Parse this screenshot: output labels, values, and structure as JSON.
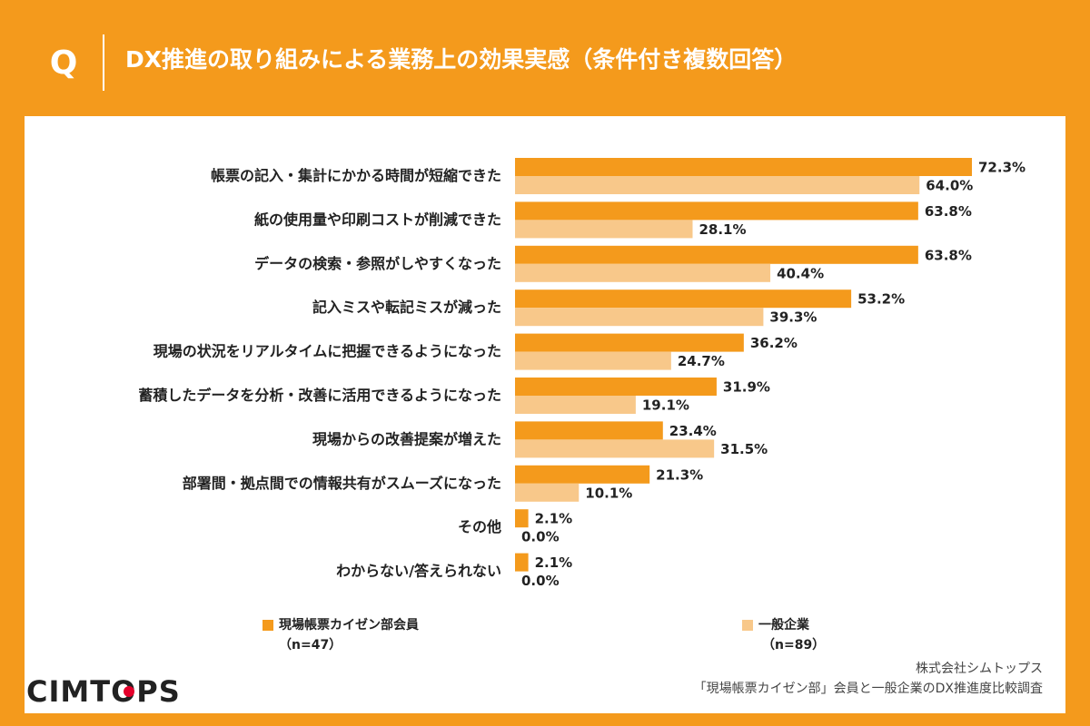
{
  "header": {
    "q_mark": "Q",
    "title": "DX推進の取り組みによる業務上の効果実感（条件付き複数回答）"
  },
  "colors": {
    "background": "#F49A1C",
    "series_primary": "#F49A1C",
    "series_secondary": "#F8C88A"
  },
  "legend": {
    "items": [
      {
        "name": "現場帳票カイゼン部会員",
        "n": "（n=47）"
      },
      {
        "name": "一般企業",
        "n": "（n=89）"
      }
    ]
  },
  "logo": {
    "text": "CIMTOPS"
  },
  "source": {
    "line1": "株式会社シムトップス",
    "line2": "「現場帳票カイゼン部」会員と一般企業のDX推進度比較調査"
  },
  "chart_data": {
    "type": "bar",
    "orientation": "horizontal",
    "title": "DX推進の取り組みによる業務上の効果実感（条件付き複数回答）",
    "categories": [
      "帳票の記入・集計にかかる時間が短縮できた",
      "紙の使用量や印刷コストが削減できた",
      "データの検索・参照がしやすくなった",
      "記入ミスや転記ミスが減った",
      "現場の状況をリアルタイムに把握できるようになった",
      "蓄積したデータを分析・改善に活用できるようになった",
      "現場からの改善提案が増えた",
      "部署間・拠点間での情報共有がスムーズになった",
      "その他",
      "わからない/答えられない"
    ],
    "series": [
      {
        "name": "現場帳票カイゼン部会員",
        "values": [
          72.3,
          63.8,
          63.8,
          53.2,
          36.2,
          31.9,
          23.4,
          21.3,
          2.1,
          2.1
        ]
      },
      {
        "name": "一般企業",
        "values": [
          64.0,
          28.1,
          40.4,
          39.3,
          24.7,
          19.1,
          31.5,
          10.1,
          0.0,
          0.0
        ]
      }
    ],
    "value_labels": [
      [
        "72.3%",
        "63.8%",
        "63.8%",
        "53.2%",
        "36.2%",
        "31.9%",
        "23.4%",
        "21.3%",
        "2.1%",
        "2.1%"
      ],
      [
        "64.0%",
        "28.1%",
        "40.4%",
        "39.3%",
        "24.7%",
        "19.1%",
        "31.5%",
        "10.1%",
        "0.0%",
        "0.0%"
      ]
    ],
    "xlim": [
      0,
      72.3
    ],
    "grid": false,
    "legend_position": "bottom"
  }
}
